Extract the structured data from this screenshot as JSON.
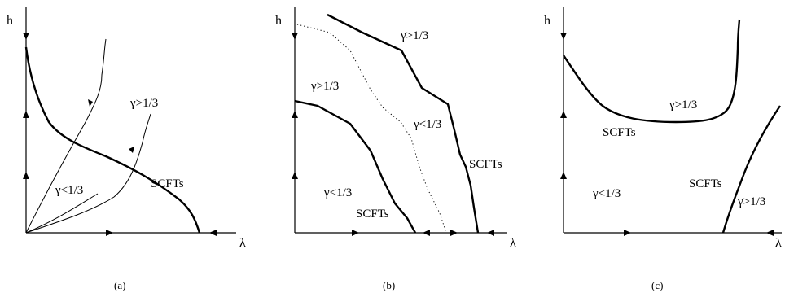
{
  "panels": [
    {
      "caption": "(a)",
      "axis_y": "h",
      "axis_x": "λ",
      "labels": {
        "gamma_gt": "γ>1/3",
        "gamma_lt": "γ<1/3",
        "scfts": "SCFTs"
      }
    },
    {
      "caption": "(b)",
      "axis_y": "h",
      "axis_x": "λ",
      "labels": {
        "gamma_gt_top": "γ>1/3",
        "gamma_gt_mid": "γ>1/3",
        "gamma_lt_right": "γ<1/3",
        "gamma_lt_left": "γ<1/3",
        "scfts_right": "SCFTs",
        "scfts_left": "SCFTs"
      }
    },
    {
      "caption": "(c)",
      "axis_y": "h",
      "axis_x": "λ",
      "labels": {
        "gamma_gt_top": "γ>1/3",
        "scfts_top": "SCFTs",
        "gamma_lt": "γ<1/3",
        "scfts_right": "SCFTs",
        "gamma_gt_right": "γ>1/3"
      }
    }
  ]
}
